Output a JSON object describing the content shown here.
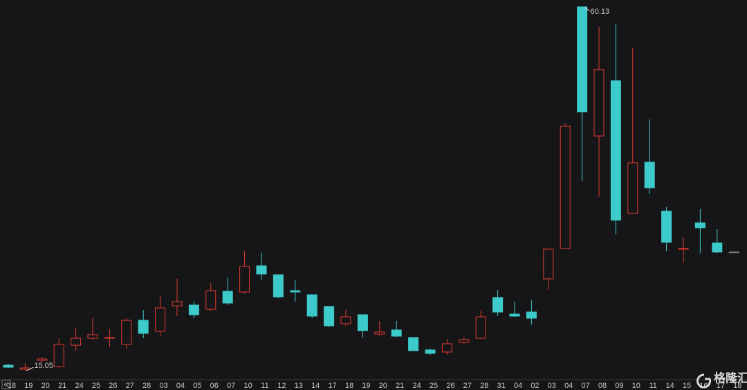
{
  "chart_data": {
    "type": "candlestick",
    "categories": [
      "18",
      "19",
      "20",
      "21",
      "24",
      "25",
      "26",
      "27",
      "28",
      "03",
      "04",
      "05",
      "06",
      "07",
      "10",
      "11",
      "12",
      "13",
      "14",
      "17",
      "18",
      "19",
      "20",
      "21",
      "24",
      "25",
      "26",
      "27",
      "28",
      "31",
      "04",
      "02",
      "03",
      "04",
      "07",
      "08",
      "09",
      "10",
      "11",
      "14",
      "15",
      "16",
      "17",
      "18"
    ],
    "open": [
      15.73,
      15.22,
      16.33,
      15.56,
      18.21,
      19.07,
      19.07,
      18.3,
      21.29,
      19.93,
      23.09,
      23.18,
      22.66,
      24.89,
      24.8,
      28.05,
      26.94,
      24.97,
      24.46,
      23.01,
      20.87,
      21.98,
      19.58,
      20.1,
      19.16,
      17.62,
      17.36,
      18.56,
      19.07,
      24.12,
      22.06,
      22.32,
      26.43,
      30.19,
      60.13,
      44.13,
      50.98,
      34.55,
      40.88,
      34.81,
      30.19,
      33.36,
      30.87,
      29.76
    ],
    "high": [
      15.91,
      15.99,
      16.76,
      19.07,
      20.27,
      21.55,
      20.18,
      21.55,
      22.58,
      24.29,
      26.43,
      23.6,
      25.91,
      26.6,
      29.85,
      29.68,
      26.94,
      26.26,
      24.46,
      23.01,
      22.58,
      21.98,
      21.21,
      21.21,
      19.16,
      17.79,
      18.98,
      19.24,
      22.49,
      25.06,
      23.6,
      23.77,
      30.11,
      45.67,
      60.13,
      57.65,
      57.99,
      55.08,
      46.19,
      35.32,
      31.56,
      35.07,
      32.59,
      29.76
    ],
    "low": [
      15.39,
      15.05,
      16.16,
      15.39,
      17.53,
      18.9,
      17.96,
      17.79,
      19.07,
      19.33,
      21.81,
      21.55,
      22.49,
      23.18,
      24.63,
      26.34,
      24.03,
      23.6,
      21.55,
      20.44,
      20.61,
      19.16,
      19.41,
      19.24,
      17.45,
      17.02,
      17.02,
      18.3,
      18.98,
      21.81,
      21.72,
      20.78,
      25.06,
      30.19,
      38.57,
      36.61,
      31.99,
      34.55,
      36.95,
      29.85,
      28.39,
      29.59,
      29.59,
      29.76
    ],
    "close": [
      15.48,
      15.39,
      16.5,
      18.3,
      19.07,
      19.5,
      19.16,
      21.29,
      19.67,
      22.83,
      23.6,
      21.98,
      24.97,
      23.43,
      27.97,
      27.03,
      24.2,
      24.8,
      21.81,
      20.61,
      21.72,
      20.01,
      19.84,
      19.33,
      17.53,
      17.19,
      18.39,
      18.9,
      21.72,
      22.32,
      21.81,
      21.55,
      30.11,
      45.33,
      47.13,
      52.35,
      33.7,
      40.8,
      37.72,
      30.96,
      30.19,
      32.76,
      29.76,
      29.76
    ],
    "up_color": "#e23a30",
    "down_color": "#3dcaca",
    "flat_color": "#8a8a8a",
    "ylim": [
      13.94,
      60.98
    ],
    "high_mark": 60.13,
    "low_mark": 15.05,
    "watermark": "格隆汇"
  }
}
